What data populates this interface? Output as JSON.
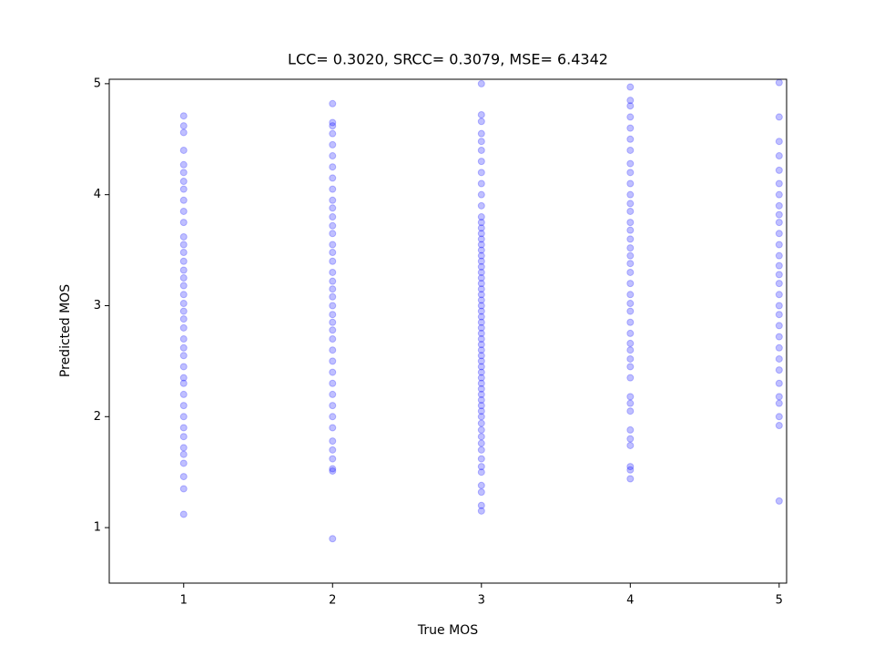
{
  "chart_data": {
    "type": "scatter",
    "title": "LCC= 0.3020, SRCC= 0.3079, MSE= 6.4342",
    "x_label": "True MOS",
    "y_label": "Predicted MOS",
    "xlim": [
      0.5,
      5.05
    ],
    "ylim": [
      0.5,
      5.04
    ],
    "xticks": [
      1,
      2,
      3,
      4,
      5
    ],
    "yticks": [
      1,
      2,
      3,
      4,
      5
    ],
    "alpha": 0.25,
    "grid": false,
    "series": [
      {
        "color": "#0000ff",
        "x": [
          1,
          1,
          1,
          1,
          1,
          1,
          1,
          1,
          1,
          1,
          1,
          1,
          1,
          1,
          1,
          1,
          1,
          1,
          1,
          1,
          1,
          1,
          1,
          1,
          1,
          1,
          1,
          1,
          1,
          1,
          1,
          1,
          1,
          1,
          1,
          1,
          1,
          1,
          1,
          1
        ],
        "values": [
          1.12,
          1.35,
          1.46,
          1.58,
          1.66,
          1.72,
          1.82,
          1.9,
          2.0,
          2.1,
          2.2,
          2.3,
          2.35,
          2.45,
          2.55,
          2.62,
          2.7,
          2.8,
          2.88,
          2.95,
          3.02,
          3.1,
          3.18,
          3.25,
          3.32,
          3.4,
          3.48,
          3.55,
          3.62,
          3.75,
          3.85,
          3.95,
          4.05,
          4.12,
          4.2,
          4.27,
          4.4,
          4.56,
          4.62,
          4.71
        ]
      },
      {
        "color": "#0000ff",
        "x": [
          2,
          2,
          2,
          2,
          2,
          2,
          2,
          2,
          2,
          2,
          2,
          2,
          2,
          2,
          2,
          2,
          2,
          2,
          2,
          2,
          2,
          2,
          2,
          2,
          2,
          2,
          2,
          2,
          2,
          2,
          2,
          2,
          2,
          2,
          2,
          2,
          2,
          2,
          2,
          2
        ],
        "values": [
          0.9,
          1.51,
          1.53,
          1.62,
          1.7,
          1.78,
          1.9,
          2.0,
          2.1,
          2.2,
          2.3,
          2.4,
          2.5,
          2.6,
          2.7,
          2.78,
          2.85,
          2.92,
          3.0,
          3.08,
          3.15,
          3.22,
          3.3,
          3.4,
          3.48,
          3.55,
          3.65,
          3.72,
          3.8,
          3.88,
          3.95,
          4.05,
          4.15,
          4.25,
          4.35,
          4.45,
          4.55,
          4.62,
          4.65,
          4.82
        ]
      },
      {
        "color": "#0000ff",
        "x": [
          3,
          3,
          3,
          3,
          3,
          3,
          3,
          3,
          3,
          3,
          3,
          3,
          3,
          3,
          3,
          3,
          3,
          3,
          3,
          3,
          3,
          3,
          3,
          3,
          3,
          3,
          3,
          3,
          3,
          3,
          3,
          3,
          3,
          3,
          3,
          3,
          3,
          3,
          3,
          3,
          3,
          3,
          3,
          3,
          3,
          3,
          3,
          3,
          3,
          3,
          3,
          3,
          3,
          3,
          3,
          3,
          3,
          3,
          3,
          3
        ],
        "values": [
          1.15,
          1.2,
          1.32,
          1.38,
          1.5,
          1.55,
          1.62,
          1.7,
          1.76,
          1.82,
          1.88,
          1.94,
          2.0,
          2.05,
          2.1,
          2.15,
          2.2,
          2.25,
          2.3,
          2.35,
          2.4,
          2.45,
          2.5,
          2.55,
          2.6,
          2.65,
          2.7,
          2.75,
          2.8,
          2.85,
          2.9,
          2.95,
          3.0,
          3.05,
          3.1,
          3.15,
          3.2,
          3.25,
          3.3,
          3.35,
          3.4,
          3.45,
          3.5,
          3.55,
          3.6,
          3.65,
          3.7,
          3.75,
          3.8,
          3.9,
          4.0,
          4.1,
          4.2,
          4.3,
          4.4,
          4.48,
          4.55,
          4.66,
          4.72,
          5.0
        ]
      },
      {
        "color": "#0000ff",
        "x": [
          4,
          4,
          4,
          4,
          4,
          4,
          4,
          4,
          4,
          4,
          4,
          4,
          4,
          4,
          4,
          4,
          4,
          4,
          4,
          4,
          4,
          4,
          4,
          4,
          4,
          4,
          4,
          4,
          4,
          4,
          4,
          4,
          4,
          4,
          4,
          4,
          4,
          4,
          4,
          4
        ],
        "values": [
          1.44,
          1.52,
          1.55,
          1.74,
          1.8,
          1.88,
          2.05,
          2.12,
          2.18,
          2.35,
          2.45,
          2.52,
          2.6,
          2.66,
          2.75,
          2.85,
          2.95,
          3.02,
          3.1,
          3.2,
          3.3,
          3.38,
          3.45,
          3.52,
          3.6,
          3.68,
          3.75,
          3.85,
          3.92,
          4.0,
          4.1,
          4.2,
          4.28,
          4.4,
          4.5,
          4.6,
          4.7,
          4.8,
          4.85,
          4.97
        ]
      },
      {
        "color": "#0000ff",
        "x": [
          5,
          5,
          5,
          5,
          5,
          5,
          5,
          5,
          5,
          5,
          5,
          5,
          5,
          5,
          5,
          5,
          5,
          5,
          5,
          5,
          5,
          5,
          5,
          5,
          5,
          5,
          5,
          5,
          5,
          5
        ],
        "values": [
          1.24,
          1.92,
          2.0,
          2.12,
          2.18,
          2.3,
          2.42,
          2.52,
          2.62,
          2.72,
          2.82,
          2.92,
          3.0,
          3.1,
          3.2,
          3.28,
          3.36,
          3.45,
          3.55,
          3.65,
          3.75,
          3.82,
          3.9,
          4.0,
          4.1,
          4.22,
          4.35,
          4.48,
          4.7,
          5.01
        ]
      }
    ]
  }
}
